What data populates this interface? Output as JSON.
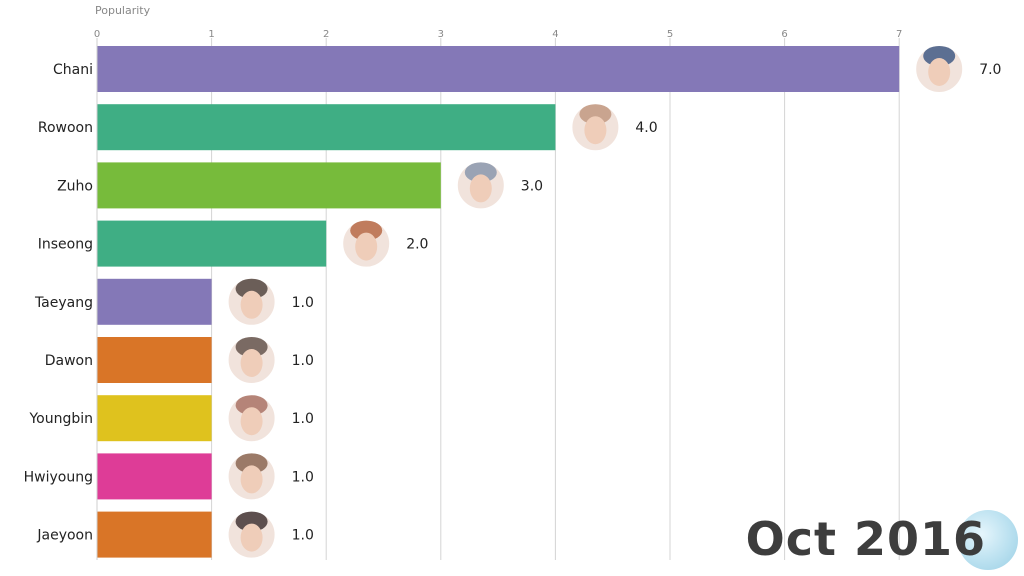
{
  "chart_data": {
    "type": "bar",
    "orientation": "horizontal",
    "xlabel": "Popularity",
    "xlim": [
      0,
      7
    ],
    "xticks": [
      "0",
      "1",
      "2",
      "3",
      "4",
      "5",
      "6",
      "7"
    ],
    "grid": true,
    "categories": [
      "Chani",
      "Rowoon",
      "Zuho",
      "Inseong",
      "Taeyang",
      "Dawon",
      "Youngbin",
      "Hwiyoung",
      "Jaeyoon"
    ],
    "values": [
      7.0,
      4.0,
      3.0,
      2.0,
      1.0,
      1.0,
      1.0,
      1.0,
      1.0
    ],
    "value_labels": [
      "7.0",
      "4.0",
      "3.0",
      "2.0",
      "1.0",
      "1.0",
      "1.0",
      "1.0",
      "1.0"
    ],
    "colors": [
      "#8478b7",
      "#3fae84",
      "#77bb3b",
      "#3fae84",
      "#8478b7",
      "#d97527",
      "#dfc21e",
      "#de3c97",
      "#d97527"
    ],
    "avatar_colors": [
      "#5c6f92",
      "#c9a48f",
      "#9aa3b4",
      "#c07c5d",
      "#6b5e58",
      "#7a6a63",
      "#b58478",
      "#9b7a68",
      "#5d4f4e"
    ],
    "date": "Oct 2016"
  }
}
